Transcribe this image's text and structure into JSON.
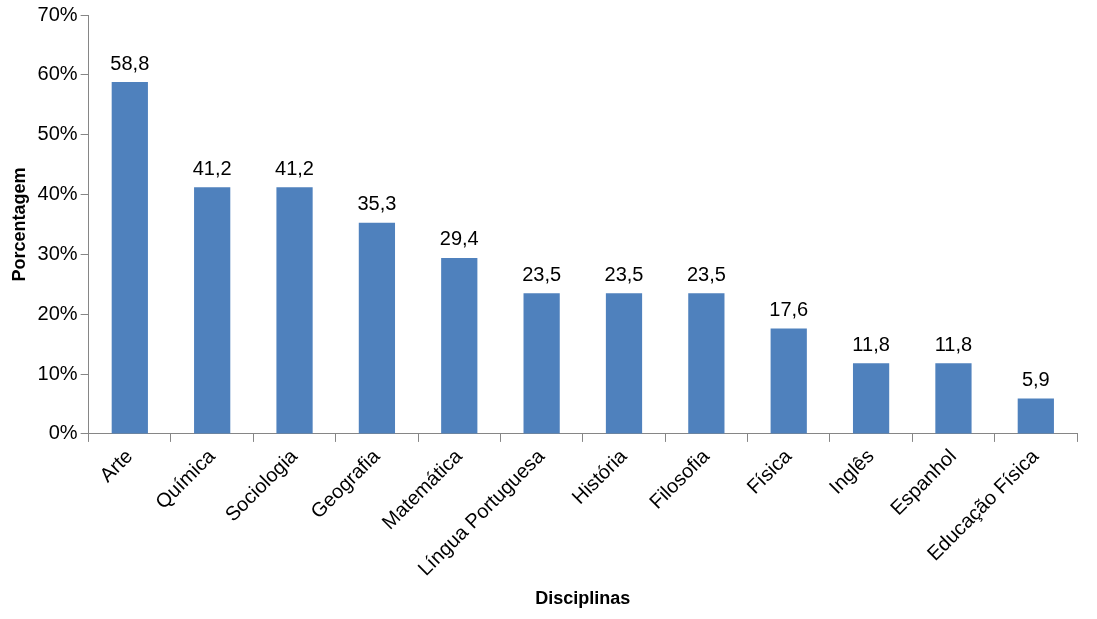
{
  "chart_data": {
    "type": "bar",
    "xlabel": "Disciplinas",
    "ylabel": "Porcentagem",
    "categories": [
      "Arte",
      "Química",
      "Sociologia",
      "Geografia",
      "Matemática",
      "Língua Portuguesa",
      "História",
      "Filosofia",
      "Física",
      "Inglês",
      "Espanhol",
      "Educação Física"
    ],
    "values": [
      58.8,
      41.2,
      41.2,
      35.3,
      29.4,
      23.5,
      23.5,
      23.5,
      17.6,
      11.8,
      11.8,
      5.9
    ],
    "value_labels": [
      "58,8",
      "41,2",
      "41,2",
      "35,3",
      "29,4",
      "23,5",
      "23,5",
      "23,5",
      "17,6",
      "11,8",
      "11,8",
      "5,9"
    ],
    "color": "#4f81bd",
    "ylim": [
      0,
      70
    ],
    "yticks": [
      {
        "value": 0,
        "label": "0%"
      },
      {
        "value": 10,
        "label": "10%"
      },
      {
        "value": 20,
        "label": "20%"
      },
      {
        "value": 30,
        "label": "30%"
      },
      {
        "value": 40,
        "label": "40%"
      },
      {
        "value": 50,
        "label": "50%"
      },
      {
        "value": 60,
        "label": "60%"
      },
      {
        "value": 70,
        "label": "70%"
      }
    ],
    "grid": false,
    "legend": false
  }
}
